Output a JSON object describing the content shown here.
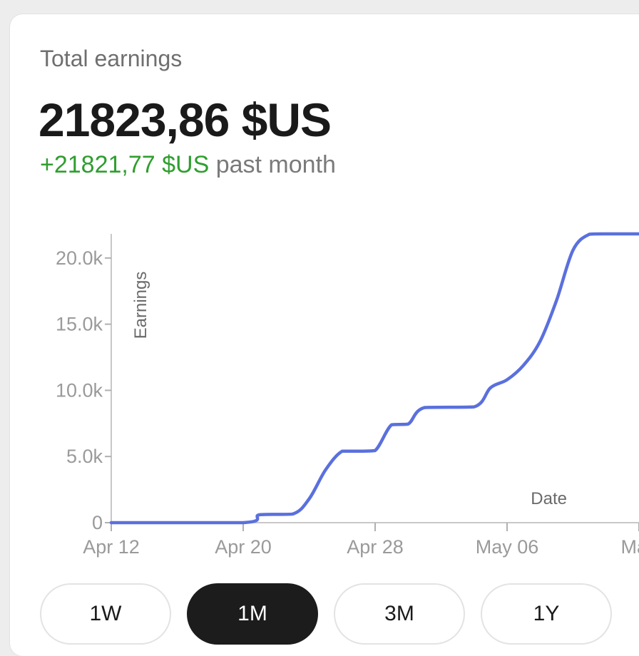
{
  "card": {
    "label": "Total earnings",
    "total": "21823,86 $US",
    "delta": "+21821,77 $US",
    "delta_suffix": "past month",
    "delta_color": "#2f9e2f"
  },
  "chart_data": {
    "type": "line",
    "xlabel": "Date",
    "ylabel": "Earnings",
    "ylim": [
      0,
      21823.86
    ],
    "y_ticks": [
      {
        "value": 0,
        "label": "0"
      },
      {
        "value": 5000,
        "label": "5.0k"
      },
      {
        "value": 10000,
        "label": "10.0k"
      },
      {
        "value": 15000,
        "label": "15.0k"
      },
      {
        "value": 20000,
        "label": "20.0k"
      }
    ],
    "x_ticks": [
      {
        "date": "2024-04-12",
        "label": "Apr 12"
      },
      {
        "date": "2024-04-20",
        "label": "Apr 20"
      },
      {
        "date": "2024-04-28",
        "label": "Apr 28"
      },
      {
        "date": "2024-05-06",
        "label": "May 06"
      },
      {
        "date": "2024-05-14",
        "label": "May"
      }
    ],
    "xlim": [
      "2024-04-12",
      "2024-05-14"
    ],
    "grid": false,
    "line_color": "#5a70dd",
    "series": [
      {
        "points": [
          [
            "2024-04-12",
            0
          ],
          [
            "2024-04-20",
            0
          ],
          [
            "2024-04-21",
            600
          ],
          [
            "2024-04-23",
            650
          ],
          [
            "2024-04-24",
            1800
          ],
          [
            "2024-04-25",
            4000
          ],
          [
            "2024-04-26",
            5400
          ],
          [
            "2024-04-27",
            5400
          ],
          [
            "2024-04-28",
            5450
          ],
          [
            "2024-04-29",
            7400
          ],
          [
            "2024-04-30",
            7450
          ],
          [
            "2024-05-01",
            8700
          ],
          [
            "2024-05-04",
            8750
          ],
          [
            "2024-05-05",
            10200
          ],
          [
            "2024-05-06",
            10800
          ],
          [
            "2024-05-07",
            11900
          ],
          [
            "2024-05-08",
            13700
          ],
          [
            "2024-05-09",
            16800
          ],
          [
            "2024-05-10",
            20600
          ],
          [
            "2024-05-11",
            21800
          ],
          [
            "2024-05-12",
            21823.86
          ]
        ]
      }
    ]
  },
  "ranges": [
    {
      "label": "1W",
      "active": false
    },
    {
      "label": "1M",
      "active": true
    },
    {
      "label": "3M",
      "active": false
    },
    {
      "label": "1Y",
      "active": false
    }
  ]
}
